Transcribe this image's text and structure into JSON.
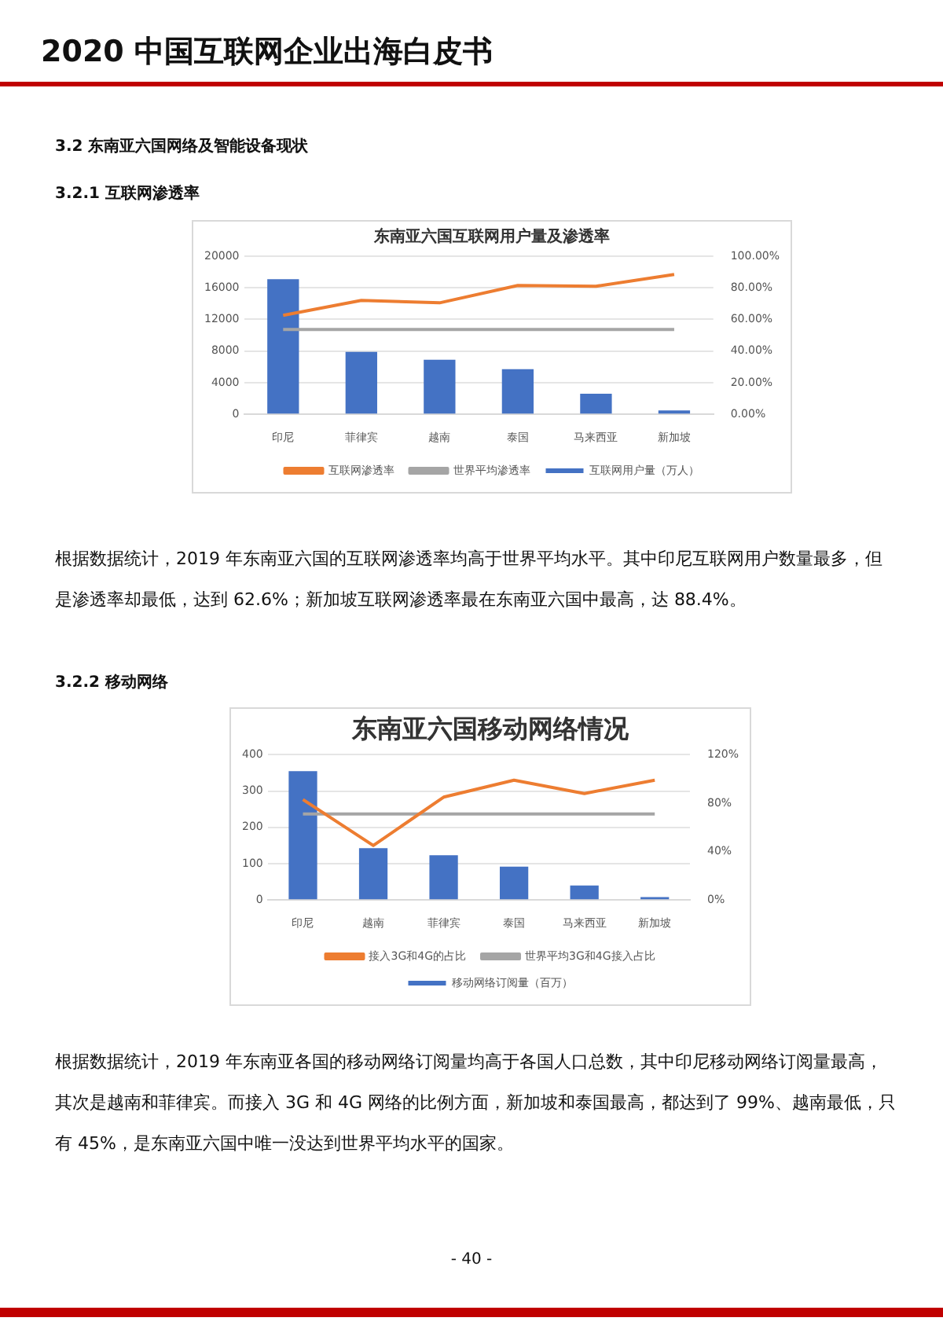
{
  "chart_data": [
    {
      "type": "bar",
      "title": "东南亚六国互联网用户量及渗透率",
      "categories": [
        "印尼",
        "菲律宾",
        "越南",
        "泰国",
        "马来西亚",
        "新加坡"
      ],
      "series": [
        {
          "name": "互联网用户量（万人）",
          "color": "#4472c4",
          "values": [
            17100,
            7900,
            6900,
            5700,
            2600,
            500
          ]
        },
        {
          "name": "互联网渗透率",
          "color": "#ed7d31",
          "type": "line",
          "axis": "y2",
          "values": [
            62.6,
            72,
            70.5,
            81.5,
            81,
            88.4
          ]
        },
        {
          "name": "世界平均渗透率",
          "color": "#a5a5a5",
          "type": "line",
          "axis": "y2",
          "values": [
            53.6,
            53.6,
            53.6,
            53.6,
            53.6,
            53.6
          ]
        }
      ],
      "ylim": [
        0,
        20000
      ],
      "yticks": [
        0,
        4000,
        8000,
        12000,
        16000,
        20000
      ],
      "y2lim": [
        0,
        100
      ],
      "y2ticks": [
        {
          "value": 0,
          "label": "0.00%"
        },
        {
          "value": 20,
          "label": "20.00%"
        },
        {
          "value": 40,
          "label": "40.00%"
        },
        {
          "value": 60,
          "label": "60.00%"
        },
        {
          "value": 80,
          "label": "80.00%"
        },
        {
          "value": 100,
          "label": "100.00%"
        }
      ],
      "grid": "y",
      "legend": "bottom",
      "marker": "none",
      "line_style": "solid",
      "annotations": [
        "2020 中国互联网企业出海白皮书",
        "3.2  东南亚六国网络及智能设备现状",
        "3.2.1  互联网渗透率",
        "根据数据统计，2019 年东南亚六国的互联网渗透率均高于世界平均水平。其中印尼互联网用户数量最多，但是渗透率却最低，达到 62.6%；新加坡互联网渗透率最在东南亚六国中最高，达 88.4%。"
      ]
    },
    {
      "type": "bar",
      "title": "东南亚六国移动网络情况",
      "categories": [
        "印尼",
        "越南",
        "菲律宾",
        "泰国",
        "马来西亚",
        "新加坡"
      ],
      "series": [
        {
          "name": "移动网络订阅量（百万）",
          "color": "#4472c4",
          "values": [
            355,
            143,
            123,
            92,
            40,
            8
          ]
        },
        {
          "name": "接入3G和4G的占比",
          "color": "#ed7d31",
          "type": "line",
          "axis": "y2",
          "values": [
            83,
            45,
            85,
            99,
            88,
            99
          ]
        },
        {
          "name": "世界平均3G和4G接入占比",
          "color": "#a5a5a5",
          "type": "line",
          "axis": "y2",
          "values": [
            71,
            71,
            71,
            71,
            71,
            71
          ]
        }
      ],
      "ylim": [
        0,
        400
      ],
      "yticks": [
        0,
        100,
        200,
        300,
        400
      ],
      "y2lim": [
        0,
        120
      ],
      "y2ticks": [
        {
          "value": 0,
          "label": "0%"
        },
        {
          "value": 40,
          "label": "40%"
        },
        {
          "value": 80,
          "label": "80%"
        },
        {
          "value": 120,
          "label": "120%"
        }
      ],
      "grid": "y",
      "legend": "bottom",
      "marker": "none",
      "line_style": "solid",
      "annotations": [
        "3.2.2  移动网络",
        "根据数据统计，2019 年东南亚各国的移动网络订阅量均高于各国人口总数，其中印尼移动网络订阅量最高，其次是越南和菲律宾。而接入 3G 和 4G 网络的比例方面，新加坡和泰国最高，都达到了 99%、越南最低，只有 45%，是东南亚六国中唯一没达到世界平均水平的国家。",
        "- 40 -"
      ]
    }
  ]
}
